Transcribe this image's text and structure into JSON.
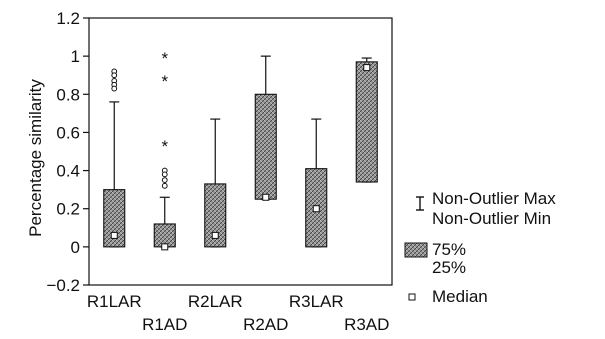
{
  "chart_data": {
    "type": "boxplot",
    "ylabel": "Percentage similarity",
    "ylim": [
      -0.2,
      1.2
    ],
    "yticks": [
      "1.2",
      "1",
      "0.8",
      "0.6",
      "0.4",
      "0.2",
      "0",
      "−0.2"
    ],
    "yticks_values": [
      1.2,
      1.0,
      0.8,
      0.6,
      0.4,
      0.2,
      0.0,
      -0.2
    ],
    "categories": [
      "R1LAR",
      "R1AD",
      "R2LAR",
      "R2AD",
      "R3LAR",
      "R3AD"
    ],
    "boxes": [
      {
        "name": "R1LAR",
        "median": 0.06,
        "q1": 0.0,
        "q3": 0.3,
        "whisker_min": 0.0,
        "whisker_max": 0.76,
        "outliers": [
          0.92,
          0.9,
          0.87,
          0.85,
          0.83
        ],
        "extremes": []
      },
      {
        "name": "R1AD",
        "median": 0.0,
        "q1": 0.0,
        "q3": 0.12,
        "whisker_min": 0.0,
        "whisker_max": 0.26,
        "outliers": [
          0.4,
          0.38,
          0.35,
          0.32
        ],
        "extremes": [
          1.0,
          0.88,
          0.54
        ]
      },
      {
        "name": "R2LAR",
        "median": 0.06,
        "q1": 0.0,
        "q3": 0.33,
        "whisker_min": 0.0,
        "whisker_max": 0.67,
        "outliers": [],
        "extremes": []
      },
      {
        "name": "R2AD",
        "median": 0.26,
        "q1": 0.25,
        "q3": 0.8,
        "whisker_min": 0.25,
        "whisker_max": 1.0,
        "outliers": [],
        "extremes": []
      },
      {
        "name": "R3LAR",
        "median": 0.2,
        "q1": 0.0,
        "q3": 0.41,
        "whisker_min": 0.0,
        "whisker_max": 0.67,
        "outliers": [],
        "extremes": []
      },
      {
        "name": "R3AD",
        "median": 0.94,
        "q1": 0.34,
        "q3": 0.97,
        "whisker_min": 0.34,
        "whisker_max": 0.99,
        "outliers": [],
        "extremes": []
      }
    ],
    "legend": {
      "placement": "right",
      "whisker_max_label": "Non-Outlier Max",
      "whisker_min_label": "Non-Outlier Min",
      "box_top_label": "75%",
      "box_bottom_label": "25%",
      "median_label": "Median"
    },
    "colors": {
      "box_fill": "#8c8c8c",
      "median_fill": "#ffffff",
      "line": "#111111"
    }
  }
}
